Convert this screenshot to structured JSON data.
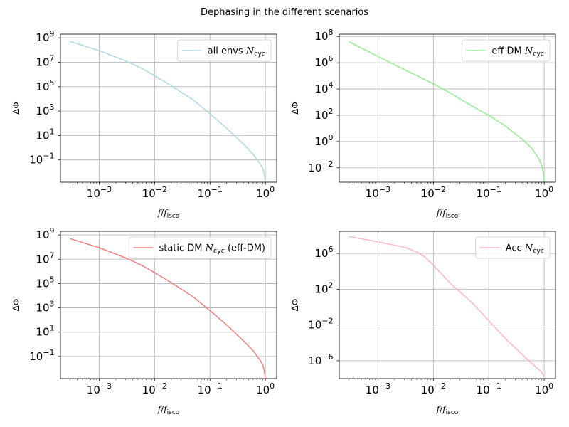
{
  "suptitle": "Dephasing in the different scenarios",
  "chart_data": [
    {
      "type": "line",
      "xlabel": "f/f_isco",
      "ylabel": "ΔΦ",
      "xscale": "log",
      "yscale": "log",
      "xlim": [
        0.0002,
        1.6
      ],
      "ylim": [
        0.0015,
        2000000000
      ],
      "xticks": [
        0.001,
        0.01,
        0.1,
        1
      ],
      "yticks": [
        0.1,
        10,
        1000,
        100000,
        10000000,
        1000000000
      ],
      "grid": true,
      "legend_position": "upper right",
      "series": [
        {
          "name": "all envs N_cyc",
          "color": "#add8e6",
          "x": [
            0.0003,
            0.001,
            0.003,
            0.006,
            0.01,
            0.02,
            0.05,
            0.1,
            0.2,
            0.4,
            0.6,
            0.8,
            0.9,
            0.95,
            0.99,
            1.0
          ],
          "y": [
            500000000,
            90000000,
            13000000,
            3000000,
            800000,
            120000,
            8000,
            600,
            40,
            2,
            0.3,
            0.05,
            0.02,
            0.008,
            0.002,
            0.0015
          ]
        }
      ]
    },
    {
      "type": "line",
      "xlabel": "f/f_isco",
      "ylabel": "ΔΦ",
      "xscale": "log",
      "yscale": "log",
      "xlim": [
        0.0002,
        1.6
      ],
      "ylim": [
        0.0008,
        150000000
      ],
      "xticks": [
        0.001,
        0.01,
        0.1,
        1
      ],
      "yticks": [
        0.01,
        1,
        100,
        10000,
        1000000,
        100000000
      ],
      "grid": true,
      "legend_position": "upper right",
      "series": [
        {
          "name": "eff DM N_cyc",
          "color": "#90ee90",
          "x": [
            0.0003,
            0.001,
            0.003,
            0.01,
            0.02,
            0.05,
            0.1,
            0.2,
            0.4,
            0.6,
            0.8,
            0.9,
            0.95,
            0.99,
            1.0
          ],
          "y": [
            40000000,
            3000000,
            300000,
            25000,
            5000,
            500,
            100,
            15,
            1.5,
            0.3,
            0.05,
            0.015,
            0.006,
            0.0015,
            0.0008
          ]
        }
      ]
    },
    {
      "type": "line",
      "xlabel": "f/f_isco",
      "ylabel": "ΔΦ",
      "xscale": "log",
      "yscale": "log",
      "xlim": [
        0.0002,
        1.6
      ],
      "ylim": [
        0.0015,
        2000000000
      ],
      "xticks": [
        0.001,
        0.01,
        0.1,
        1
      ],
      "yticks": [
        0.1,
        10,
        1000,
        100000,
        10000000,
        1000000000
      ],
      "grid": true,
      "legend_position": "upper right",
      "series": [
        {
          "name": "static DM N_cyc (eff-DM)",
          "color": "#f08080",
          "x": [
            0.0003,
            0.001,
            0.003,
            0.006,
            0.01,
            0.02,
            0.05,
            0.1,
            0.2,
            0.4,
            0.6,
            0.8,
            0.9,
            0.95,
            0.99,
            1.0
          ],
          "y": [
            500000000,
            90000000,
            13000000,
            3000000,
            800000,
            120000,
            8000,
            600,
            40,
            2,
            0.3,
            0.05,
            0.02,
            0.008,
            0.002,
            0.0015
          ]
        }
      ]
    },
    {
      "type": "line",
      "xlabel": "f/f_isco",
      "ylabel": "ΔΦ",
      "xscale": "log",
      "yscale": "log",
      "xlim": [
        0.0002,
        1.6
      ],
      "ylim": [
        1e-08,
        300000000
      ],
      "xticks": [
        0.001,
        0.01,
        0.1,
        1
      ],
      "yticks": [
        1e-06,
        0.01,
        100,
        1000000
      ],
      "grid": true,
      "legend_position": "upper right",
      "series": [
        {
          "name": "Acc N_cyc",
          "color": "#ffb6c1",
          "x": [
            0.0003,
            0.001,
            0.003,
            0.005,
            0.007,
            0.01,
            0.02,
            0.05,
            0.1,
            0.2,
            0.4,
            0.6,
            0.8,
            0.9,
            0.95,
            0.99,
            1.0
          ],
          "y": [
            80000000,
            20000000,
            5000000,
            1500000,
            400000,
            50000,
            500,
            3,
            0.03,
            0.0003,
            5e-06,
            5e-07,
            1e-07,
            5e-08,
            3e-08,
            1.5e-08,
            1e-08
          ]
        }
      ]
    }
  ]
}
